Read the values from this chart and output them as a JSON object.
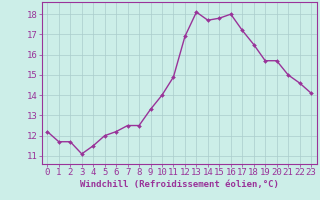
{
  "x": [
    0,
    1,
    2,
    3,
    4,
    5,
    6,
    7,
    8,
    9,
    10,
    11,
    12,
    13,
    14,
    15,
    16,
    17,
    18,
    19,
    20,
    21,
    22,
    23
  ],
  "y": [
    12.2,
    11.7,
    11.7,
    11.1,
    11.5,
    12.0,
    12.2,
    12.5,
    12.5,
    13.3,
    14.0,
    14.9,
    16.9,
    18.1,
    17.7,
    17.8,
    18.0,
    17.2,
    16.5,
    15.7,
    15.7,
    15.0,
    14.6,
    14.1
  ],
  "line_color": "#993399",
  "marker": "D",
  "marker_size": 2.0,
  "background_color": "#cceee8",
  "grid_color": "#aacccc",
  "tick_color": "#993399",
  "label_color": "#993399",
  "xlabel": "Windchill (Refroidissement éolien,°C)",
  "ylabel": "",
  "xlim": [
    -0.5,
    23.5
  ],
  "ylim": [
    10.6,
    18.6
  ],
  "yticks": [
    11,
    12,
    13,
    14,
    15,
    16,
    17,
    18
  ],
  "xticks": [
    0,
    1,
    2,
    3,
    4,
    5,
    6,
    7,
    8,
    9,
    10,
    11,
    12,
    13,
    14,
    15,
    16,
    17,
    18,
    19,
    20,
    21,
    22,
    23
  ],
  "xlabel_fontsize": 6.5,
  "tick_fontsize": 6.5,
  "line_width": 1.0
}
